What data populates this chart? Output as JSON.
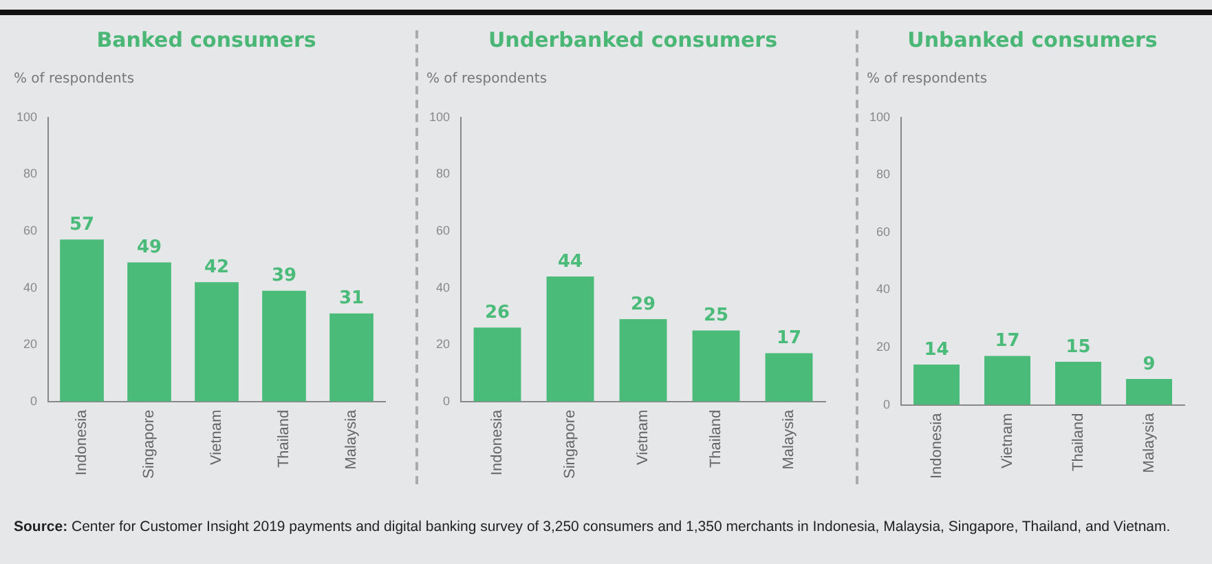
{
  "chart_data": [
    {
      "type": "bar",
      "title": "Banked consumers",
      "ylabel": "% of respondents",
      "categories": [
        "Indonesia",
        "Singapore",
        "Vietnam",
        "Thailand",
        "Malaysia"
      ],
      "values": [
        57,
        49,
        42,
        39,
        31
      ],
      "color": "#4bbb7a",
      "ylim": [
        0,
        100
      ],
      "yticks": [
        0,
        20,
        40,
        60,
        80,
        100
      ],
      "grid": false,
      "data_labels": true,
      "legend": false,
      "annotations": [
        "Source: Center for Customer Insight 2019 payments and digital banking survey of 3,250 consumers and 1,350 merchants in Indonesia, Malaysia, Singapore, Thailand, and Vietnam."
      ]
    },
    {
      "type": "bar",
      "title": "Underbanked consumers",
      "ylabel": "% of respondents",
      "categories": [
        "Indonesia",
        "Singapore",
        "Vietnam",
        "Thailand",
        "Malaysia"
      ],
      "values": [
        26,
        44,
        29,
        25,
        17
      ],
      "color": "#4bbb7a",
      "ylim": [
        0,
        100
      ],
      "yticks": [
        0,
        20,
        40,
        60,
        80,
        100
      ],
      "grid": false,
      "data_labels": true,
      "legend": false
    },
    {
      "type": "bar",
      "title": "Unbanked consumers",
      "ylabel": "% of respondents",
      "categories": [
        "Indonesia",
        "Vietnam",
        "Thailand",
        "Malaysia"
      ],
      "values": [
        14,
        17,
        15,
        9
      ],
      "color": "#4bbb7a",
      "ylim": [
        0,
        100
      ],
      "yticks": [
        0,
        20,
        40,
        60,
        80,
        100
      ],
      "grid": false,
      "data_labels": true,
      "legend": false
    }
  ]
}
